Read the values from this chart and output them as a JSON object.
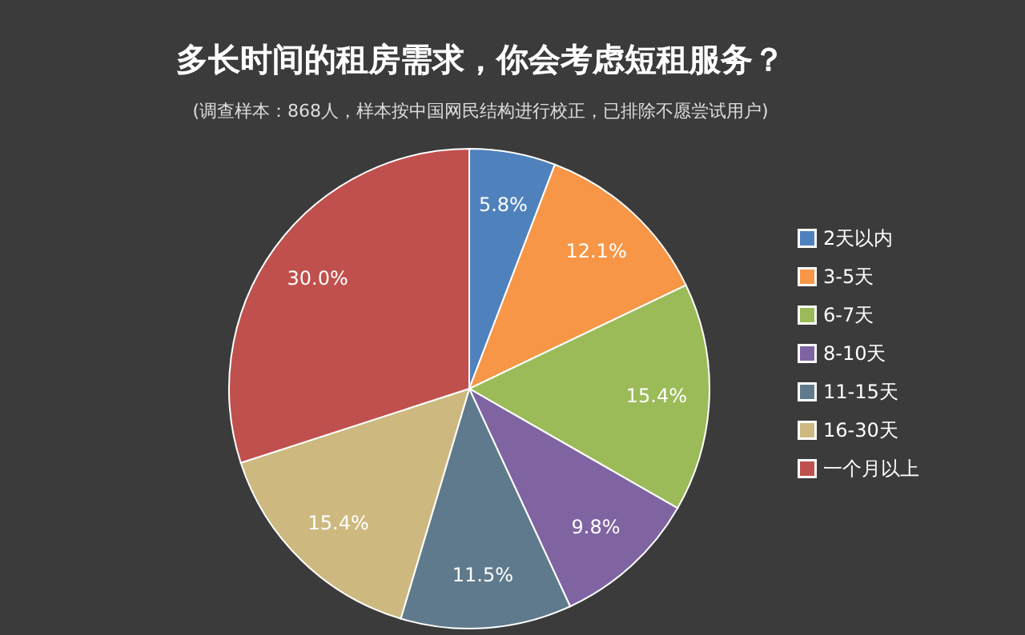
{
  "chart_data": {
    "type": "pie",
    "title": "多长时间的租房需求，你会考虑短租服务？",
    "subtitle": "(调查样本：868人，样本按中国网民结构进行校正，已排除不愿尝试用户)",
    "categories": [
      "2天以内",
      "3-5天",
      "6-7天",
      "8-10天",
      "11-15天",
      "16-30天",
      "一个月以上"
    ],
    "values": [
      5.8,
      12.1,
      15.4,
      9.8,
      11.5,
      15.4,
      30.0
    ],
    "colors": [
      "#4f81bd",
      "#f79646",
      "#9bbb59",
      "#8064a2",
      "#5f7a8c",
      "#cdb97f",
      "#c0504d"
    ],
    "value_labels": [
      "5.8%",
      "12.1%",
      "15.4%",
      "9.8%",
      "11.5%",
      "15.4%",
      "30.0%"
    ],
    "legend": "right"
  }
}
